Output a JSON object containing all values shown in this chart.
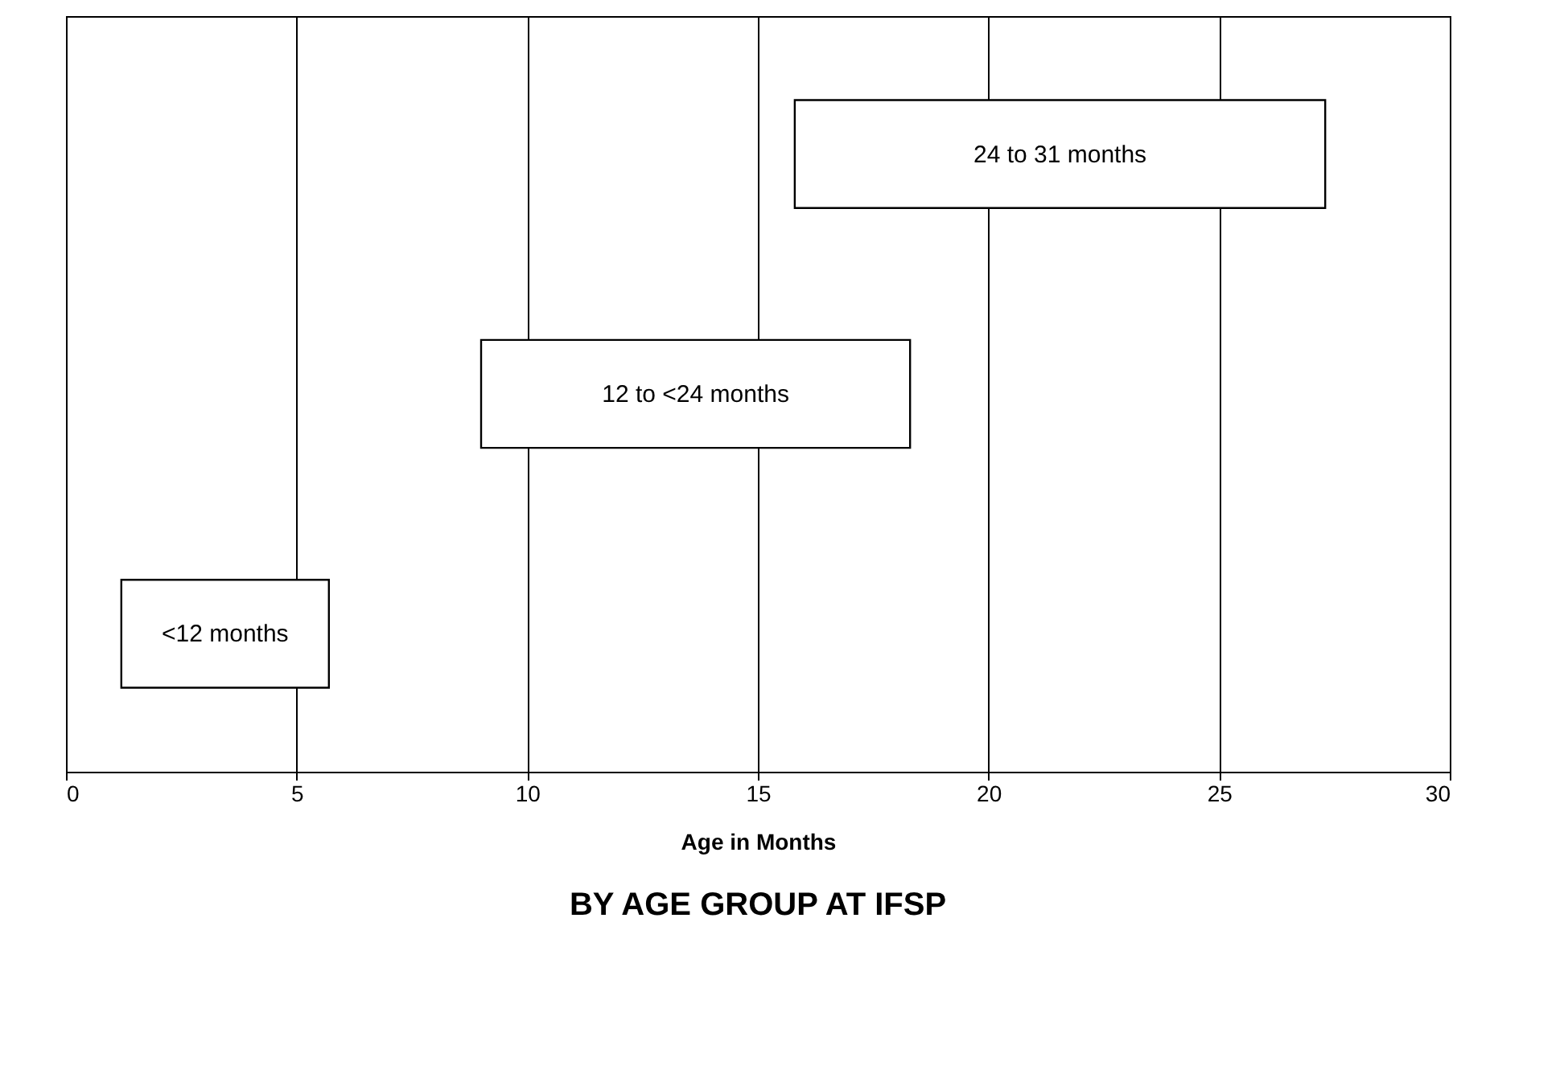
{
  "chart_data": {
    "type": "bar",
    "orientation": "horizontal",
    "title": "BY AGE GROUP AT IFSP",
    "xlabel": "Age in Months",
    "categories": [
      "24 to 31 months",
      "12 to <24 months",
      "<12 months"
    ],
    "values": [
      11.5,
      9.3,
      4.5
    ],
    "base": [
      15.8,
      9.0,
      1.2
    ],
    "color": "#ffffff",
    "xlim": [
      0,
      30
    ],
    "xticks": [
      0,
      5,
      10,
      15,
      20,
      25,
      30
    ],
    "grid": "x",
    "tick_labels": "x"
  }
}
